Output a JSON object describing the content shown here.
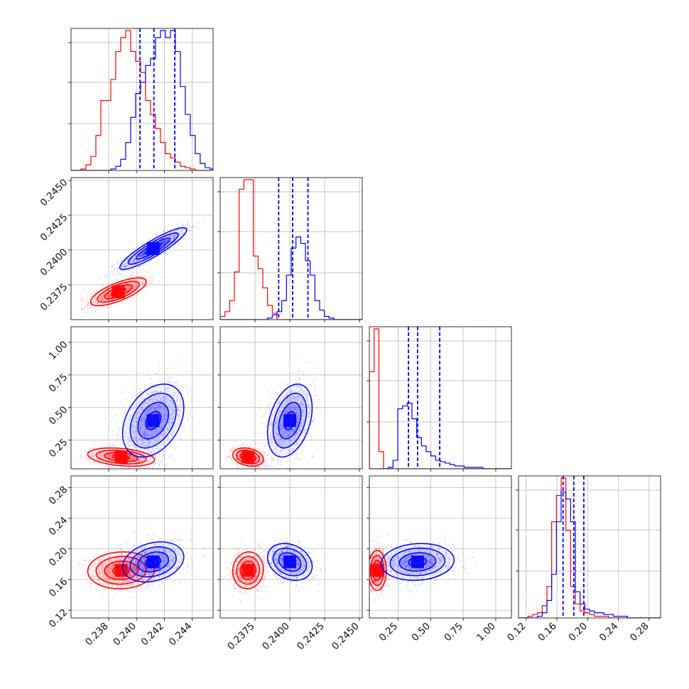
{
  "chart_data": {
    "type": "corner",
    "grid": true,
    "n_params": 4,
    "colors": {
      "model_a": "#ff0000",
      "model_b": "#0000ff",
      "quantile_lines": "#0000ff"
    },
    "params": [
      {
        "range": [
          0.2353,
          0.2455
        ],
        "ticks": [
          0.238,
          0.24,
          0.242,
          0.244
        ],
        "tick_labels": [
          "0.238",
          "0.240",
          "0.242",
          "0.244"
        ],
        "quantiles_blue": [
          0.24025,
          0.24125,
          0.24275
        ],
        "hist_red": {
          "edges": [
            0.2353,
            0.246
          ],
          "counts": [
            0,
            0,
            1,
            4,
            10,
            25,
            50,
            50,
            65,
            85,
            95,
            100,
            85,
            78,
            70,
            50,
            40,
            30,
            20,
            12,
            9,
            6,
            3,
            2,
            1,
            0,
            0,
            0,
            0,
            0
          ]
        },
        "hist_blue": {
          "edges": [
            0.2353,
            0.246
          ],
          "counts": [
            0,
            0,
            0,
            0,
            0,
            0,
            0,
            0,
            1,
            3,
            8,
            20,
            38,
            55,
            63,
            75,
            80,
            95,
            100,
            95,
            100,
            85,
            60,
            40,
            25,
            12,
            5,
            2,
            1,
            0
          ]
        }
      },
      {
        "range": [
          0.235,
          0.2452
        ],
        "ticks": [
          0.2375,
          0.24,
          0.2425,
          0.245
        ],
        "tick_labels": [
          "0.2375",
          "0.2400",
          "0.2425",
          "0.2450"
        ],
        "quantiles_blue": [
          0.2392,
          0.2402,
          0.2413
        ],
        "hist_red": {
          "edges": [
            0.235,
            0.2452
          ],
          "counts": [
            2,
            5,
            12,
            30,
            82,
            88,
            88,
            40,
            32,
            20,
            9,
            4,
            0,
            0,
            0,
            0,
            0,
            0,
            0,
            0,
            0,
            0,
            0,
            0,
            0,
            0,
            0,
            0,
            0,
            0
          ]
        },
        "hist_blue": {
          "edges": [
            0.235,
            0.2452
          ],
          "counts": [
            0,
            0,
            0,
            0,
            0,
            0,
            0,
            0,
            0,
            0,
            1,
            3,
            5,
            12,
            28,
            45,
            52,
            48,
            37,
            28,
            12,
            6,
            2,
            1,
            0,
            0,
            0,
            0,
            0,
            0
          ]
        }
      },
      {
        "range": [
          0.03,
          1.12
        ],
        "ticks": [
          0.25,
          0.5,
          0.75,
          1.0
        ],
        "tick_labels": [
          "0.25",
          "0.50",
          "0.75",
          "1.00"
        ],
        "quantiles_blue": [
          0.33,
          0.4,
          0.57
        ],
        "hist_red": {
          "edges": [
            0.03,
            1.12
          ],
          "counts": [
            68,
            98,
            12,
            0,
            0,
            0,
            0,
            0,
            0,
            0,
            0,
            0,
            0,
            0,
            0,
            0,
            0,
            0,
            0,
            0,
            0,
            0,
            0,
            0,
            0,
            0,
            0,
            0,
            0,
            0
          ]
        },
        "hist_blue": {
          "edges": [
            0.03,
            1.12
          ],
          "counts": [
            0,
            0,
            0,
            0,
            1,
            6,
            42,
            44,
            46,
            35,
            22,
            16,
            12,
            9,
            6,
            5,
            4,
            3,
            2,
            2,
            1,
            1,
            1,
            1,
            0,
            0,
            0,
            0,
            0,
            0
          ]
        }
      },
      {
        "range": [
          0.11,
          0.295
        ],
        "ticks": [
          0.12,
          0.16,
          0.2,
          0.24,
          0.28
        ],
        "tick_labels": [
          "0.12",
          "0.16",
          "0.20",
          "0.24",
          "0.28"
        ],
        "quantiles_blue": [
          0.168,
          0.182,
          0.195
        ],
        "hist_red": {
          "edges": [
            0.11,
            0.295
          ],
          "counts": [
            0,
            0,
            1,
            2,
            3,
            7,
            18,
            55,
            70,
            80,
            50,
            18,
            8,
            4,
            3,
            2,
            1,
            1,
            1,
            0,
            0,
            0,
            0,
            0,
            0,
            0,
            0,
            0,
            0,
            0
          ]
        },
        "hist_blue": {
          "edges": [
            0.11,
            0.295
          ],
          "counts": [
            0,
            0,
            0,
            0,
            1,
            3,
            10,
            25,
            55,
            72,
            68,
            55,
            15,
            8,
            5,
            4,
            3,
            3,
            2,
            2,
            1,
            1,
            1,
            0,
            0,
            0,
            0,
            0,
            0,
            0
          ]
        }
      }
    ],
    "pairs": [
      {
        "row": 1,
        "col": 0,
        "red": {
          "center": [
            0.2387,
            0.237
          ],
          "sd": [
            0.001,
            0.0005
          ],
          "rho": 0.72,
          "n": 900
        },
        "blue": {
          "center": [
            0.2412,
            0.2401
          ],
          "sd": [
            0.0012,
            0.00075
          ],
          "rho": 0.9,
          "n": 900
        }
      },
      {
        "row": 2,
        "col": 0,
        "red": {
          "center": [
            0.2389,
            0.12
          ],
          "sd": [
            0.0012,
            0.035
          ],
          "rho": -0.3,
          "n": 700
        },
        "blue": {
          "center": [
            0.2412,
            0.4
          ],
          "sd": [
            0.0011,
            0.14
          ],
          "rho": 0.35,
          "n": 900
        }
      },
      {
        "row": 2,
        "col": 1,
        "red": {
          "center": [
            0.237,
            0.12
          ],
          "sd": [
            0.00055,
            0.035
          ],
          "rho": -0.25,
          "n": 700
        },
        "blue": {
          "center": [
            0.24,
            0.4
          ],
          "sd": [
            0.0008,
            0.14
          ],
          "rho": 0.35,
          "n": 900
        }
      },
      {
        "row": 3,
        "col": 0,
        "red": {
          "center": [
            0.2389,
            0.172
          ],
          "sd": [
            0.0012,
            0.012
          ],
          "rho": 0.05,
          "n": 800
        },
        "blue": {
          "center": [
            0.2412,
            0.183
          ],
          "sd": [
            0.0011,
            0.013
          ],
          "rho": 0.25,
          "n": 800
        }
      },
      {
        "row": 3,
        "col": 1,
        "red": {
          "center": [
            0.237,
            0.172
          ],
          "sd": [
            0.00055,
            0.012
          ],
          "rho": 0.05,
          "n": 800
        },
        "blue": {
          "center": [
            0.24,
            0.183
          ],
          "sd": [
            0.0008,
            0.012
          ],
          "rho": -0.25,
          "n": 800
        }
      },
      {
        "row": 3,
        "col": 2,
        "red": {
          "center": [
            0.09,
            0.172
          ],
          "sd": [
            0.035,
            0.013
          ],
          "rho": 0.0,
          "n": 800
        },
        "blue": {
          "center": [
            0.4,
            0.183
          ],
          "sd": [
            0.14,
            0.012
          ],
          "rho": 0.1,
          "n": 800
        }
      }
    ]
  }
}
